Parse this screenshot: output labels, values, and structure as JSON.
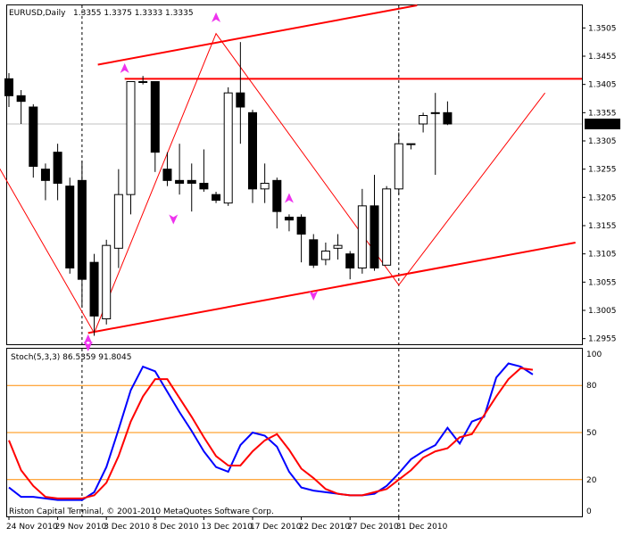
{
  "chart_data": [
    {
      "type": "candlestick",
      "title": "EURUSD,Daily",
      "ohlc_header": "1.3355 1.3375 1.3333 1.3335",
      "current_price": 1.3335,
      "current_price_label": "1.3335",
      "ylim": [
        1.2945,
        1.3545
      ],
      "y_ticks": [
        "1.3505",
        "1.3455",
        "1.3405",
        "1.3355",
        "1.3305",
        "1.3255",
        "1.3205",
        "1.3155",
        "1.3105",
        "1.3055",
        "1.3005",
        "1.2955"
      ],
      "x_ticks": [
        "24 Nov 2010",
        "29 Nov 2010",
        "3 Dec 2010",
        "8 Dec 2010",
        "13 Dec 2010",
        "17 Dec 2010",
        "22 Dec 2010",
        "27 Dec 2010",
        "31 Dec 2010"
      ],
      "x_tick_index": [
        0,
        4,
        8,
        12,
        16,
        20,
        24,
        28,
        32
      ],
      "candles": [
        [
          1.3415,
          1.3425,
          1.3365,
          1.3385
        ],
        [
          1.3385,
          1.3395,
          1.3335,
          1.3375
        ],
        [
          1.3365,
          1.337,
          1.324,
          1.326
        ],
        [
          1.3255,
          1.3265,
          1.32,
          1.3235
        ],
        [
          1.3285,
          1.33,
          1.32,
          1.323
        ],
        [
          1.3225,
          1.324,
          1.307,
          1.308
        ],
        [
          1.3235,
          1.327,
          1.301,
          1.306
        ],
        [
          1.309,
          1.3105,
          1.296,
          1.2995
        ],
        [
          1.299,
          1.313,
          1.298,
          1.312
        ],
        [
          1.3115,
          1.3255,
          1.308,
          1.321
        ],
        [
          1.321,
          1.341,
          1.3175,
          1.341
        ],
        [
          1.341,
          1.342,
          1.3405,
          1.341
        ],
        [
          1.341,
          1.341,
          1.325,
          1.3285
        ],
        [
          1.3255,
          1.3285,
          1.3225,
          1.3235
        ],
        [
          1.3235,
          1.33,
          1.321,
          1.323
        ],
        [
          1.3235,
          1.3265,
          1.318,
          1.323
        ],
        [
          1.323,
          1.329,
          1.3215,
          1.322
        ],
        [
          1.321,
          1.3215,
          1.3195,
          1.32
        ],
        [
          1.3195,
          1.34,
          1.319,
          1.339
        ],
        [
          1.339,
          1.348,
          1.33,
          1.3365
        ],
        [
          1.3355,
          1.336,
          1.3195,
          1.322
        ],
        [
          1.322,
          1.3265,
          1.3195,
          1.323
        ],
        [
          1.3235,
          1.324,
          1.315,
          1.318
        ],
        [
          1.317,
          1.3175,
          1.3145,
          1.3165
        ],
        [
          1.317,
          1.3175,
          1.309,
          1.314
        ],
        [
          1.313,
          1.314,
          1.308,
          1.3085
        ],
        [
          1.3095,
          1.3125,
          1.3085,
          1.311
        ],
        [
          1.3115,
          1.314,
          1.3095,
          1.312
        ],
        [
          1.3105,
          1.311,
          1.306,
          1.308
        ],
        [
          1.308,
          1.322,
          1.307,
          1.319
        ],
        [
          1.319,
          1.3245,
          1.3075,
          1.308
        ],
        [
          1.3085,
          1.3225,
          1.3085,
          1.322
        ],
        [
          1.322,
          1.332,
          1.321,
          1.33
        ],
        [
          1.33,
          1.33,
          1.329,
          1.33
        ],
        [
          1.3335,
          1.3355,
          1.332,
          1.335
        ],
        [
          1.3355,
          1.339,
          1.3245,
          1.3355
        ],
        [
          1.3355,
          1.3375,
          1.3333,
          1.3335
        ]
      ],
      "zigzag": [
        [
          -1,
          1.3265
        ],
        [
          7,
          1.2965
        ],
        [
          17,
          1.3495
        ],
        [
          32,
          1.305
        ],
        [
          44,
          1.339
        ]
      ],
      "channel_lines": [
        {
          "from": [
            6.5,
            1.2965
          ],
          "to": [
            46.5,
            1.3125
          ]
        },
        {
          "from": [
            7.3,
            1.344
          ],
          "to": [
            33.5,
            1.3545
          ]
        }
      ],
      "horizontal_lines": [
        1.3415
      ],
      "arrows_up": [
        [
          9.5,
          1.343
        ],
        [
          17.0,
          1.352
        ],
        [
          23.0,
          1.32
        ],
        [
          6.5,
          1.295
        ]
      ],
      "arrows_down": [
        [
          13.5,
          1.317
        ],
        [
          25.0,
          1.3035
        ],
        [
          6.5,
          1.2945
        ]
      ],
      "vline_index": [
        6,
        32
      ],
      "color_bull": "#ffffff",
      "color_bear": "#000000",
      "color_lines": "#ff0000",
      "color_arrows": "#ee33ee"
    },
    {
      "type": "line",
      "title": "Stoch(5,3,3) 86.5359 91.8045",
      "ylim": [
        0,
        100
      ],
      "y_ticks": [
        "100",
        "0"
      ],
      "levels": [
        80,
        50,
        20
      ],
      "level_labels": [
        "80",
        "50",
        "20"
      ],
      "level_color": "#ff8c00",
      "series": [
        {
          "color": "#0000ff",
          "values": [
            15,
            9,
            9,
            8,
            7,
            7,
            7,
            12,
            28,
            52,
            77,
            92,
            89,
            76,
            63,
            51,
            38,
            28,
            25,
            42,
            50,
            48,
            41,
            25,
            15,
            13,
            12,
            11,
            10,
            10,
            11,
            16,
            24,
            33,
            38,
            42,
            53,
            43,
            57,
            60,
            85,
            94,
            92,
            87
          ]
        },
        {
          "color": "#ff0000",
          "values": [
            45,
            26,
            16,
            9,
            8,
            8,
            8,
            10,
            18,
            35,
            57,
            73,
            84,
            84,
            72,
            60,
            47,
            35,
            29,
            29,
            38,
            45,
            49,
            39,
            27,
            21,
            14,
            11,
            10,
            10,
            12,
            14,
            20,
            26,
            34,
            38,
            40,
            47,
            49,
            61,
            73,
            84,
            91,
            90
          ]
        }
      ]
    }
  ],
  "footer": "Riston Capital Terminal, © 2001-2010 MetaQuotes Software Corp."
}
